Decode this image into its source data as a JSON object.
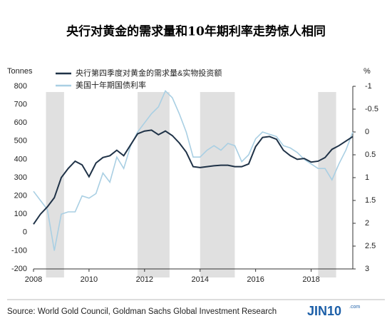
{
  "chart_data": {
    "type": "line",
    "title": "央行对黄金的需求量和10年期利率走势惊人相同",
    "ylabel": "Tonnes",
    "y2label": "%",
    "source": "Source: World Gold Council, Goldman Sachs Global Investment Research",
    "logo": "JIN10",
    "logo_suffix": ".com",
    "x": [
      2008,
      2008.25,
      2008.5,
      2008.75,
      2009,
      2009.25,
      2009.5,
      2009.75,
      2010,
      2010.25,
      2010.5,
      2010.75,
      2011,
      2011.25,
      2011.5,
      2011.75,
      2012,
      2012.25,
      2012.5,
      2012.75,
      2013,
      2013.25,
      2013.5,
      2013.75,
      2014,
      2014.25,
      2014.5,
      2014.75,
      2015,
      2015.25,
      2015.5,
      2015.75,
      2016,
      2016.25,
      2016.5,
      2016.75,
      2017,
      2017.25,
      2017.5,
      2017.75,
      2018,
      2018.25,
      2018.5,
      2018.75,
      2019,
      2019.25,
      2019.5
    ],
    "series": [
      {
        "name": "央行第四季度对黄金的需求量&实物投资额",
        "color": "#1f3247",
        "values": [
          45,
          100,
          140,
          190,
          300,
          350,
          390,
          370,
          305,
          380,
          410,
          420,
          450,
          420,
          480,
          540,
          555,
          560,
          535,
          555,
          530,
          490,
          440,
          360,
          355,
          360,
          365,
          368,
          368,
          360,
          360,
          375,
          470,
          520,
          525,
          510,
          450,
          420,
          400,
          405,
          385,
          390,
          410,
          455,
          475,
          500,
          525
        ]
      },
      {
        "name": "美国十年期国债利率",
        "color": "#a9cfe3",
        "axis": "y2",
        "values": [
          1.3,
          1.5,
          1.7,
          2.6,
          1.8,
          1.75,
          1.75,
          1.4,
          1.45,
          1.35,
          0.9,
          1.1,
          0.55,
          0.8,
          0.3,
          0,
          -0.2,
          -0.4,
          -0.55,
          -0.9,
          -0.75,
          -0.4,
          0,
          0.55,
          0.55,
          0.4,
          0.3,
          0.4,
          0.25,
          0.3,
          0.65,
          0.5,
          0.15,
          0,
          0.05,
          0.1,
          0.3,
          0.35,
          0.45,
          0.6,
          0.7,
          0.8,
          0.8,
          1.05,
          0.7,
          0.4,
          0
        ]
      }
    ],
    "shaded": [
      [
        2008.45,
        2009.1
      ],
      [
        2011.75,
        2012.9
      ],
      [
        2014.0,
        2015.25
      ],
      [
        2018.25,
        2018.9
      ]
    ],
    "shade_color": "#e0e0e0",
    "xlim": [
      2008,
      2019.5
    ],
    "xticks": [
      2008,
      2010,
      2012,
      2014,
      2016,
      2018
    ],
    "ylim": [
      -200,
      800
    ],
    "yticks": [
      -200,
      -100,
      0,
      100,
      200,
      300,
      400,
      500,
      600,
      700,
      800
    ],
    "y2lim": [
      -1,
      3
    ],
    "y2_inverted": true,
    "y2ticks": [
      -1,
      -0.5,
      0,
      0.5,
      1,
      1.5,
      2,
      2.5,
      3
    ]
  }
}
